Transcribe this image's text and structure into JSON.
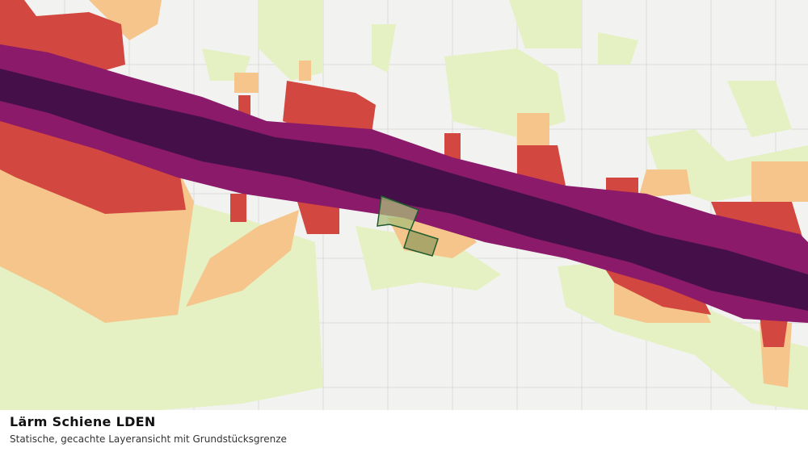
{
  "caption": {
    "title": "Lärm Schiene LDEN",
    "subtitle": "Statische, gecachte Layeransicht mit Grundstücksgrenze"
  }
}
